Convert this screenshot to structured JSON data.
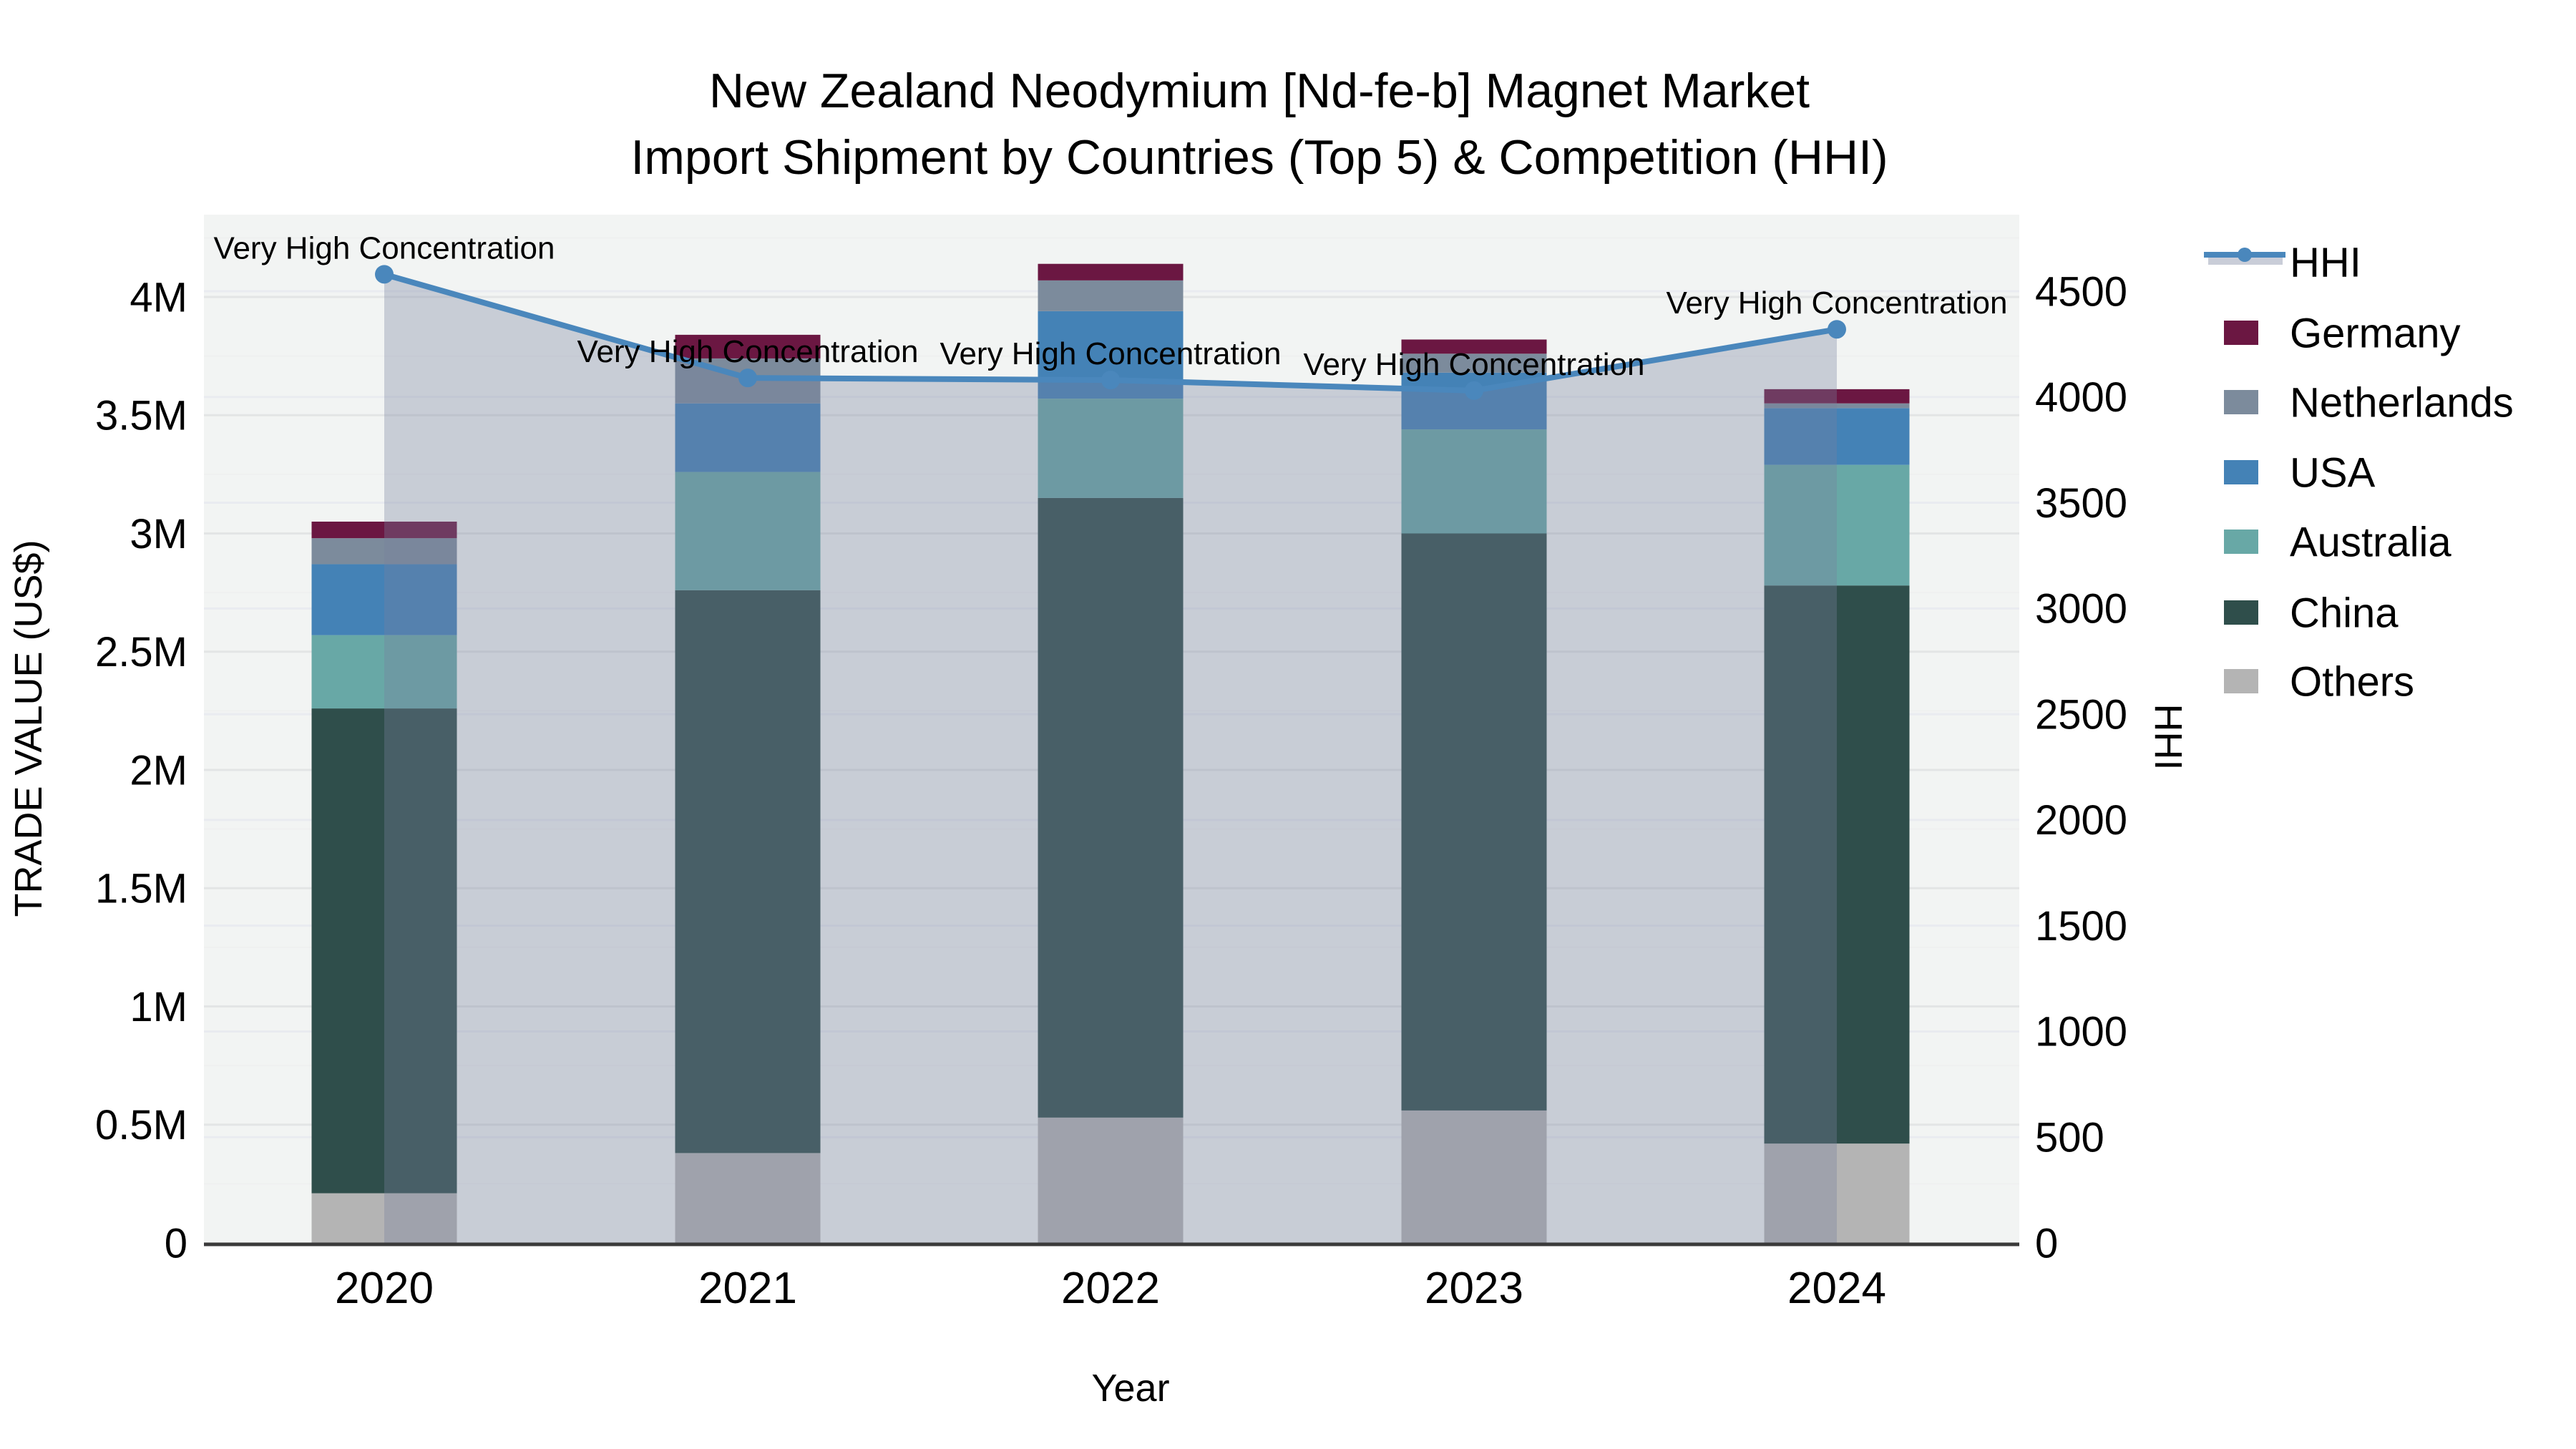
{
  "chart_data": {
    "type": "bar+line",
    "title": "New Zealand Neodymium [Nd-fe-b] Magnet Market",
    "subtitle": "Import Shipment by Countries (Top 5) & Competition (HHI)",
    "xlabel": "Year",
    "ylabel": "TRADE VALUE (US$)",
    "y2label": "HHI",
    "categories": [
      "2020",
      "2021",
      "2022",
      "2023",
      "2024"
    ],
    "stack_order_bottom_to_top": [
      "Others",
      "China",
      "Australia",
      "USA",
      "Netherlands",
      "Germany"
    ],
    "series": [
      {
        "name": "Germany",
        "color": "#6B1742",
        "values_musd": [
          0.07,
          0.1,
          0.07,
          0.06,
          0.06
        ]
      },
      {
        "name": "Netherlands",
        "color": "#7C8B9C",
        "values_musd": [
          0.11,
          0.19,
          0.13,
          0.08,
          0.02
        ]
      },
      {
        "name": "USA",
        "color": "#4482B6",
        "values_musd": [
          0.3,
          0.29,
          0.37,
          0.24,
          0.24
        ]
      },
      {
        "name": "Australia",
        "color": "#68A8A6",
        "values_musd": [
          0.31,
          0.5,
          0.42,
          0.44,
          0.51
        ]
      },
      {
        "name": "China",
        "color": "#2F4E4B",
        "values_musd": [
          2.05,
          2.38,
          2.62,
          2.44,
          2.36
        ]
      },
      {
        "name": "Others",
        "color": "#B4B4B4",
        "values_musd": [
          0.21,
          0.38,
          0.53,
          0.56,
          0.42
        ]
      }
    ],
    "totals_musd": [
      3.05,
      3.84,
      4.14,
      3.82,
      3.61
    ],
    "line_series": {
      "name": "HHI",
      "color": "#4A87BC",
      "area_fill": "rgba(120,128,159,0.34)",
      "values": [
        4580,
        4090,
        4080,
        4030,
        4320
      ]
    },
    "annotations": {
      "text": "Very High Concentration",
      "shown_at_every_point": true
    },
    "y_axis_left": {
      "ticks": [
        "0",
        "0.5M",
        "1M",
        "1.5M",
        "2M",
        "2.5M",
        "3M",
        "3.5M",
        "4M"
      ],
      "tick_values_musd": [
        0,
        0.5,
        1,
        1.5,
        2,
        2.5,
        3,
        3.5,
        4
      ],
      "range_musd": [
        0,
        4.35
      ]
    },
    "y_axis_right": {
      "ticks": [
        "0",
        "500",
        "1000",
        "1500",
        "2000",
        "2500",
        "3000",
        "3500",
        "4000",
        "4500"
      ],
      "tick_values": [
        0,
        500,
        1000,
        1500,
        2000,
        2500,
        3000,
        3500,
        4000,
        4500
      ],
      "range": [
        0,
        4865
      ]
    },
    "legend_position": "right",
    "legend_order": [
      "HHI",
      "Germany",
      "Netherlands",
      "USA",
      "Australia",
      "China",
      "Others"
    ],
    "grid": true,
    "plot_bg": "#F2F4F3",
    "grid_color_left": "#E3E5E5",
    "grid_color_minor": "#EFF0F0",
    "grid_color_right": "#E9EBF0",
    "axis_line_color": "#3A3A3A",
    "annotation_color": "#111111"
  }
}
